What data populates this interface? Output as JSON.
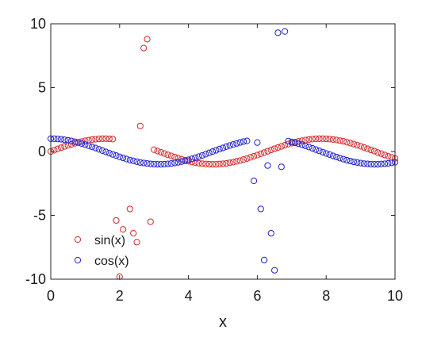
{
  "chart_data": {
    "type": "scatter",
    "xlabel": "x",
    "ylabel": "",
    "xlim": [
      0,
      10
    ],
    "ylim": [
      -10,
      10
    ],
    "xticks": [
      "0",
      "2",
      "4",
      "6",
      "8",
      "10"
    ],
    "yticks": [
      "10",
      "5",
      "0",
      "-5",
      "-10"
    ],
    "grid": false,
    "legend_position": "bottom-left",
    "series": [
      {
        "name": "sin(x)",
        "color": "#d62728",
        "points": [
          [
            0.0,
            0.0
          ],
          [
            0.1,
            0.1
          ],
          [
            0.2,
            0.2
          ],
          [
            0.3,
            0.3
          ],
          [
            0.4,
            0.4
          ],
          [
            0.5,
            0.48
          ],
          [
            0.6,
            0.56
          ],
          [
            0.7,
            0.64
          ],
          [
            0.8,
            0.72
          ],
          [
            0.9,
            0.78
          ],
          [
            1.0,
            0.84
          ],
          [
            1.1,
            0.89
          ],
          [
            1.2,
            0.93
          ],
          [
            1.3,
            0.96
          ],
          [
            1.4,
            0.99
          ],
          [
            1.5,
            1.0
          ],
          [
            1.6,
            1.0
          ],
          [
            1.7,
            0.99
          ],
          [
            1.8,
            0.97
          ],
          [
            1.9,
            -5.4
          ],
          [
            2.0,
            -9.8
          ],
          [
            2.1,
            -6.1
          ],
          [
            2.3,
            -4.5
          ],
          [
            2.4,
            -6.4
          ],
          [
            2.5,
            -7.1
          ],
          [
            2.6,
            2.0
          ],
          [
            2.7,
            8.1
          ],
          [
            2.8,
            8.8
          ],
          [
            2.9,
            -5.5
          ],
          [
            3.0,
            0.14
          ],
          [
            3.1,
            0.04
          ],
          [
            3.2,
            -0.06
          ],
          [
            3.3,
            -0.16
          ],
          [
            3.4,
            -0.26
          ],
          [
            3.5,
            -0.35
          ],
          [
            3.6,
            -0.44
          ],
          [
            3.7,
            -0.53
          ],
          [
            3.8,
            -0.61
          ],
          [
            3.9,
            -0.69
          ],
          [
            4.0,
            -0.76
          ],
          [
            4.1,
            -0.82
          ],
          [
            4.2,
            -0.87
          ],
          [
            4.3,
            -0.92
          ],
          [
            4.4,
            -0.95
          ],
          [
            4.5,
            -0.98
          ],
          [
            4.6,
            -0.99
          ],
          [
            4.7,
            -1.0
          ],
          [
            4.8,
            -1.0
          ],
          [
            4.9,
            -0.98
          ],
          [
            5.0,
            -0.96
          ],
          [
            5.1,
            -0.93
          ],
          [
            5.2,
            -0.88
          ],
          [
            5.3,
            -0.83
          ],
          [
            5.4,
            -0.77
          ],
          [
            5.5,
            -0.71
          ],
          [
            5.6,
            -0.63
          ],
          [
            5.7,
            -0.55
          ],
          [
            5.8,
            -0.46
          ],
          [
            5.9,
            -0.37
          ],
          [
            6.0,
            -0.28
          ],
          [
            6.1,
            -0.18
          ],
          [
            6.2,
            -0.08
          ],
          [
            6.3,
            0.02
          ],
          [
            6.4,
            0.12
          ],
          [
            6.5,
            0.22
          ],
          [
            6.6,
            0.31
          ],
          [
            6.7,
            0.4
          ],
          [
            6.8,
            0.49
          ],
          [
            6.9,
            0.58
          ],
          [
            7.0,
            0.66
          ],
          [
            7.1,
            0.73
          ],
          [
            7.2,
            0.79
          ],
          [
            7.3,
            0.85
          ],
          [
            7.4,
            0.9
          ],
          [
            7.5,
            0.94
          ],
          [
            7.6,
            0.97
          ],
          [
            7.7,
            0.99
          ],
          [
            7.8,
            1.0
          ],
          [
            7.9,
            1.0
          ],
          [
            8.0,
            0.99
          ],
          [
            8.1,
            0.97
          ],
          [
            8.2,
            0.94
          ],
          [
            8.3,
            0.9
          ],
          [
            8.4,
            0.85
          ],
          [
            8.5,
            0.8
          ],
          [
            8.6,
            0.73
          ],
          [
            8.7,
            0.66
          ],
          [
            8.8,
            0.58
          ],
          [
            8.9,
            0.5
          ],
          [
            9.0,
            0.41
          ],
          [
            9.1,
            0.32
          ],
          [
            9.2,
            0.22
          ],
          [
            9.3,
            0.12
          ],
          [
            9.4,
            0.03
          ],
          [
            9.5,
            -0.08
          ],
          [
            9.6,
            -0.17
          ],
          [
            9.7,
            -0.27
          ],
          [
            9.8,
            -0.37
          ],
          [
            9.9,
            -0.46
          ],
          [
            10.0,
            -0.54
          ]
        ]
      },
      {
        "name": "cos(x)",
        "color": "#1f1fd0",
        "points": [
          [
            0.0,
            1.0
          ],
          [
            0.1,
            1.0
          ],
          [
            0.2,
            0.98
          ],
          [
            0.3,
            0.96
          ],
          [
            0.4,
            0.92
          ],
          [
            0.5,
            0.88
          ],
          [
            0.6,
            0.83
          ],
          [
            0.7,
            0.76
          ],
          [
            0.8,
            0.7
          ],
          [
            0.9,
            0.62
          ],
          [
            1.0,
            0.54
          ],
          [
            1.1,
            0.45
          ],
          [
            1.2,
            0.36
          ],
          [
            1.3,
            0.27
          ],
          [
            1.4,
            0.17
          ],
          [
            1.5,
            0.07
          ],
          [
            1.6,
            -0.03
          ],
          [
            1.7,
            -0.13
          ],
          [
            1.8,
            -0.23
          ],
          [
            1.9,
            -0.32
          ],
          [
            2.0,
            -0.42
          ],
          [
            2.1,
            -0.5
          ],
          [
            2.2,
            -0.59
          ],
          [
            2.3,
            -0.67
          ],
          [
            2.4,
            -0.74
          ],
          [
            2.5,
            -0.8
          ],
          [
            2.6,
            -0.86
          ],
          [
            2.7,
            -0.9
          ],
          [
            2.8,
            -0.94
          ],
          [
            2.9,
            -0.97
          ],
          [
            3.0,
            -0.99
          ],
          [
            3.1,
            -1.0
          ],
          [
            3.2,
            -1.0
          ],
          [
            3.3,
            -0.99
          ],
          [
            3.4,
            -0.97
          ],
          [
            3.5,
            -0.94
          ],
          [
            3.6,
            -0.9
          ],
          [
            3.7,
            -0.85
          ],
          [
            3.8,
            -0.79
          ],
          [
            3.9,
            -0.73
          ],
          [
            4.0,
            -0.65
          ],
          [
            4.1,
            -0.57
          ],
          [
            4.2,
            -0.49
          ],
          [
            4.3,
            -0.4
          ],
          [
            4.4,
            -0.31
          ],
          [
            4.5,
            -0.21
          ],
          [
            4.6,
            -0.11
          ],
          [
            4.7,
            -0.01
          ],
          [
            4.8,
            0.09
          ],
          [
            4.9,
            0.19
          ],
          [
            5.0,
            0.28
          ],
          [
            5.1,
            0.38
          ],
          [
            5.2,
            0.47
          ],
          [
            5.3,
            0.55
          ],
          [
            5.4,
            0.63
          ],
          [
            5.5,
            0.71
          ],
          [
            5.6,
            0.78
          ],
          [
            5.7,
            0.83
          ],
          [
            5.9,
            -2.3
          ],
          [
            6.0,
            0.7
          ],
          [
            6.1,
            -4.5
          ],
          [
            6.2,
            -8.5
          ],
          [
            6.3,
            -1.1
          ],
          [
            6.4,
            -6.4
          ],
          [
            6.5,
            -9.3
          ],
          [
            6.6,
            9.3
          ],
          [
            6.7,
            -1.2
          ],
          [
            6.8,
            9.4
          ],
          [
            6.9,
            0.82
          ],
          [
            7.0,
            0.75
          ],
          [
            7.1,
            0.68
          ],
          [
            7.2,
            0.61
          ],
          [
            7.3,
            0.53
          ],
          [
            7.4,
            0.44
          ],
          [
            7.5,
            0.35
          ],
          [
            7.6,
            0.25
          ],
          [
            7.7,
            0.15
          ],
          [
            7.8,
            0.05
          ],
          [
            7.9,
            -0.05
          ],
          [
            8.0,
            -0.15
          ],
          [
            8.1,
            -0.24
          ],
          [
            8.2,
            -0.34
          ],
          [
            8.3,
            -0.43
          ],
          [
            8.4,
            -0.52
          ],
          [
            8.5,
            -0.6
          ],
          [
            8.6,
            -0.68
          ],
          [
            8.7,
            -0.75
          ],
          [
            8.8,
            -0.81
          ],
          [
            8.9,
            -0.86
          ],
          [
            9.0,
            -0.91
          ],
          [
            9.1,
            -0.95
          ],
          [
            9.2,
            -0.97
          ],
          [
            9.3,
            -0.99
          ],
          [
            9.4,
            -1.0
          ],
          [
            9.5,
            -1.0
          ],
          [
            9.6,
            -0.98
          ],
          [
            9.7,
            -0.96
          ],
          [
            9.8,
            -0.93
          ],
          [
            9.9,
            -0.89
          ],
          [
            10.0,
            -0.84
          ]
        ]
      }
    ]
  }
}
